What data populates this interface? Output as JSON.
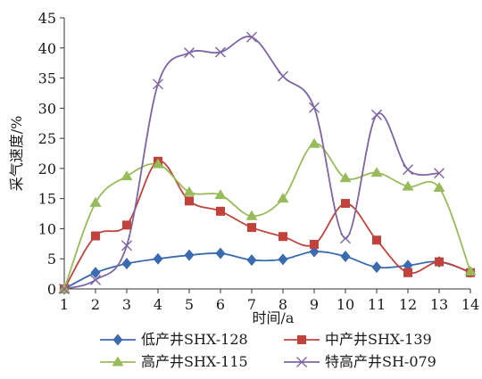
{
  "chart_data": {
    "type": "line",
    "title": "",
    "xlabel": "时间/a",
    "ylabel": "采气速度/%",
    "xlim": [
      1,
      14
    ],
    "ylim": [
      0,
      45
    ],
    "x": [
      1,
      2,
      3,
      4,
      5,
      6,
      7,
      8,
      9,
      10,
      11,
      12,
      13,
      14
    ],
    "x_tick_labels": [
      "1",
      "2",
      "3",
      "4",
      "5",
      "6",
      "7",
      "8",
      "9",
      "10",
      "11",
      "12",
      "13",
      "14"
    ],
    "y_ticks": [
      0,
      5,
      10,
      15,
      20,
      25,
      30,
      35,
      40,
      45
    ],
    "y_tick_labels": [
      "0",
      "5",
      "10",
      "15",
      "20",
      "25",
      "30",
      "35",
      "40",
      "45"
    ],
    "grid": false,
    "legend_position": "bottom",
    "series": [
      {
        "name": "低产井SHX-128",
        "color": "#3a6ab0",
        "marker": "diamond",
        "x": [
          1,
          2,
          3,
          4,
          5,
          6,
          7,
          8,
          9,
          10,
          11,
          12,
          13,
          14
        ],
        "values": [
          0,
          2.7,
          4.2,
          5.0,
          5.6,
          5.9,
          4.8,
          4.9,
          6.2,
          5.4,
          3.6,
          3.9,
          4.5,
          2.8
        ]
      },
      {
        "name": "中产井SHX-139",
        "color": "#c0423b",
        "marker": "square",
        "x": [
          1,
          2,
          3,
          4,
          5,
          6,
          7,
          8,
          9,
          10,
          11,
          12,
          13,
          14
        ],
        "values": [
          0,
          8.8,
          10.6,
          21.2,
          14.6,
          12.9,
          10.2,
          8.7,
          7.4,
          14.2,
          8.1,
          2.7,
          4.5,
          2.7
        ]
      },
      {
        "name": "高产井SHX-115",
        "color": "#98bb5a",
        "marker": "triangle",
        "x": [
          1,
          2,
          3,
          4,
          5,
          6,
          7,
          8,
          9,
          10,
          11,
          12,
          13,
          14
        ],
        "values": [
          0,
          14.3,
          18.7,
          20.7,
          16.1,
          15.6,
          12.1,
          15.0,
          24.1,
          18.4,
          19.3,
          17.0,
          16.8,
          2.9
        ]
      },
      {
        "name": "特高产井SH-079",
        "color": "#7e64a3",
        "marker": "x",
        "x": [
          1,
          2,
          3,
          4,
          5,
          6,
          7,
          8,
          9,
          10,
          11,
          12,
          13
        ],
        "values": [
          0,
          1.5,
          7.2,
          34.0,
          39.2,
          39.3,
          41.8,
          35.3,
          30.1,
          8.4,
          28.9,
          19.8,
          19.2
        ]
      }
    ]
  }
}
